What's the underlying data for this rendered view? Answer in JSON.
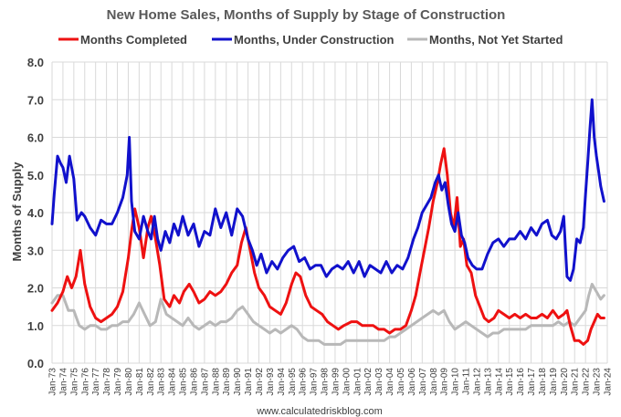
{
  "chart_data": {
    "type": "line",
    "title": "New Home Sales, Months of Supply by Stage of Construction",
    "ylabel": "Months of Supply",
    "xlabel": "",
    "ylim": [
      0,
      8
    ],
    "yticks": [
      "0.0",
      "1.0",
      "2.0",
      "3.0",
      "4.0",
      "5.0",
      "6.0",
      "7.0",
      "8.0"
    ],
    "xticks": [
      "Jan-73",
      "Jan-74",
      "Jan-75",
      "Jan-76",
      "Jan-77",
      "Jan-78",
      "Jan-79",
      "Jan-80",
      "Jan-81",
      "Jan-82",
      "Jan-83",
      "Jan-84",
      "Jan-85",
      "Jan-86",
      "Jan-87",
      "Jan-88",
      "Jan-89",
      "Jan-90",
      "Jan-91",
      "Jan-92",
      "Jan-93",
      "Jan-94",
      "Jan-95",
      "Jan-96",
      "Jan-97",
      "Jan-98",
      "Jan-99",
      "Jan-00",
      "Jan-01",
      "Jan-02",
      "Jan-03",
      "Jan-04",
      "Jan-05",
      "Jan-06",
      "Jan-07",
      "Jan-08",
      "Jan-09",
      "Jan-10",
      "Jan-11",
      "Jan-12",
      "Jan-13",
      "Jan-14",
      "Jan-15",
      "Jan-16",
      "Jan-17",
      "Jan-18",
      "Jan-19",
      "Jan-20",
      "Jan-21",
      "Jan-22",
      "Jan-23",
      "Jan-24"
    ],
    "grid": true,
    "legend_position": "top",
    "source": "www.calculatedriskblog.com",
    "series": [
      {
        "name": "Months Completed",
        "color": "#ee1111",
        "x": [
          1973.0,
          1973.5,
          1974.0,
          1974.4,
          1974.8,
          1975.2,
          1975.6,
          1976.0,
          1976.5,
          1977.0,
          1977.5,
          1978.0,
          1978.5,
          1979.0,
          1979.5,
          1980.0,
          1980.3,
          1980.6,
          1981.0,
          1981.4,
          1981.8,
          1982.1,
          1982.5,
          1982.9,
          1983.3,
          1983.8,
          1984.2,
          1984.7,
          1985.1,
          1985.6,
          1986.0,
          1986.5,
          1987.0,
          1987.5,
          1988.0,
          1988.5,
          1989.0,
          1989.5,
          1990.0,
          1990.4,
          1990.8,
          1991.2,
          1991.6,
          1992.0,
          1992.5,
          1993.0,
          1993.5,
          1994.0,
          1994.5,
          1995.0,
          1995.4,
          1995.8,
          1996.3,
          1996.8,
          1997.3,
          1997.8,
          1998.3,
          1998.8,
          1999.3,
          1999.8,
          2000.5,
          2001.0,
          2001.5,
          2002.0,
          2002.5,
          2003.0,
          2003.5,
          2004.0,
          2004.5,
          2005.0,
          2005.5,
          2006.0,
          2006.4,
          2006.8,
          2007.2,
          2007.6,
          2008.0,
          2008.4,
          2008.7,
          2009.0,
          2009.3,
          2009.6,
          2009.9,
          2010.2,
          2010.5,
          2010.8,
          2011.1,
          2011.5,
          2011.9,
          2012.3,
          2012.7,
          2013.1,
          2013.6,
          2014.0,
          2014.5,
          2015.0,
          2015.5,
          2016.0,
          2016.5,
          2017.0,
          2017.5,
          2018.0,
          2018.5,
          2019.0,
          2019.5,
          2020.0,
          2020.3,
          2020.6,
          2021.0,
          2021.4,
          2021.8,
          2022.2,
          2022.5,
          2022.8,
          2023.1,
          2023.4,
          2023.7
        ],
        "values": [
          1.4,
          1.6,
          1.9,
          2.3,
          2.0,
          2.3,
          3.0,
          2.1,
          1.5,
          1.2,
          1.1,
          1.2,
          1.3,
          1.5,
          1.9,
          2.8,
          3.5,
          4.1,
          3.6,
          2.8,
          3.6,
          3.9,
          3.3,
          2.6,
          1.7,
          1.5,
          1.8,
          1.6,
          1.9,
          2.1,
          1.9,
          1.6,
          1.7,
          1.9,
          1.8,
          1.9,
          2.1,
          2.4,
          2.6,
          3.2,
          3.6,
          3.0,
          2.4,
          2.0,
          1.8,
          1.5,
          1.4,
          1.3,
          1.6,
          2.1,
          2.4,
          2.3,
          1.8,
          1.5,
          1.4,
          1.3,
          1.1,
          1.0,
          0.9,
          1.0,
          1.1,
          1.1,
          1.0,
          1.0,
          1.0,
          0.9,
          0.9,
          0.8,
          0.9,
          0.9,
          1.0,
          1.4,
          1.8,
          2.4,
          3.0,
          3.6,
          4.3,
          4.8,
          5.3,
          5.7,
          5.0,
          4.0,
          3.6,
          4.4,
          3.1,
          3.3,
          2.6,
          2.4,
          1.8,
          1.5,
          1.2,
          1.1,
          1.2,
          1.4,
          1.3,
          1.2,
          1.3,
          1.2,
          1.3,
          1.2,
          1.2,
          1.3,
          1.2,
          1.4,
          1.2,
          1.3,
          1.4,
          1.0,
          0.6,
          0.6,
          0.5,
          0.6,
          0.9,
          1.1,
          1.3,
          1.2,
          1.2
        ]
      },
      {
        "name": "Months, Under Construction",
        "color": "#1111cc",
        "x": [
          1973.0,
          1973.2,
          1973.5,
          1973.8,
          1974.0,
          1974.3,
          1974.6,
          1975.0,
          1975.3,
          1975.7,
          1976.0,
          1976.5,
          1977.0,
          1977.5,
          1978.0,
          1978.5,
          1979.0,
          1979.5,
          1979.9,
          1980.1,
          1980.3,
          1980.6,
          1981.0,
          1981.4,
          1981.8,
          1982.1,
          1982.4,
          1982.7,
          1983.0,
          1983.4,
          1983.8,
          1984.2,
          1984.6,
          1985.0,
          1985.5,
          1986.0,
          1986.5,
          1987.0,
          1987.5,
          1988.0,
          1988.5,
          1989.0,
          1989.5,
          1990.0,
          1990.5,
          1991.0,
          1991.4,
          1991.8,
          1992.2,
          1992.7,
          1993.2,
          1993.7,
          1994.2,
          1994.7,
          1995.2,
          1995.7,
          1996.2,
          1996.7,
          1997.2,
          1997.7,
          1998.2,
          1998.7,
          1999.2,
          1999.7,
          2000.2,
          2000.7,
          2001.2,
          2001.7,
          2002.2,
          2002.7,
          2003.2,
          2003.7,
          2004.2,
          2004.7,
          2005.2,
          2005.7,
          2006.2,
          2006.6,
          2007.0,
          2007.4,
          2007.8,
          2008.2,
          2008.5,
          2008.8,
          2009.1,
          2009.4,
          2009.7,
          2010.0,
          2010.3,
          2010.6,
          2010.9,
          2011.2,
          2011.6,
          2012.0,
          2012.5,
          2013.0,
          2013.5,
          2014.0,
          2014.5,
          2015.0,
          2015.5,
          2016.0,
          2016.5,
          2017.0,
          2017.5,
          2018.0,
          2018.5,
          2018.9,
          2019.3,
          2019.7,
          2020.0,
          2020.3,
          2020.6,
          2020.9,
          2021.2,
          2021.5,
          2021.8,
          2022.0,
          2022.2,
          2022.4,
          2022.6,
          2022.8,
          2023.0,
          2023.2,
          2023.4,
          2023.7
        ],
        "values": [
          3.7,
          4.5,
          5.5,
          5.3,
          5.2,
          4.8,
          5.5,
          4.9,
          3.8,
          4.0,
          3.9,
          3.6,
          3.4,
          3.8,
          3.7,
          3.7,
          4.0,
          4.4,
          5.0,
          6.0,
          4.3,
          3.5,
          3.3,
          3.9,
          3.5,
          3.3,
          3.9,
          3.3,
          3.0,
          3.5,
          3.2,
          3.7,
          3.4,
          3.9,
          3.4,
          3.7,
          3.1,
          3.5,
          3.4,
          4.1,
          3.6,
          4.0,
          3.4,
          4.1,
          3.9,
          3.3,
          3.0,
          2.6,
          2.9,
          2.4,
          2.7,
          2.5,
          2.8,
          3.0,
          3.1,
          2.7,
          2.8,
          2.5,
          2.6,
          2.6,
          2.3,
          2.5,
          2.6,
          2.5,
          2.7,
          2.4,
          2.7,
          2.3,
          2.6,
          2.5,
          2.4,
          2.7,
          2.4,
          2.6,
          2.5,
          2.8,
          3.3,
          3.6,
          4.0,
          4.2,
          4.4,
          4.8,
          5.0,
          4.6,
          4.8,
          4.2,
          3.7,
          3.5,
          4.0,
          3.4,
          3.2,
          2.8,
          2.6,
          2.5,
          2.5,
          2.9,
          3.2,
          3.3,
          3.1,
          3.3,
          3.3,
          3.5,
          3.3,
          3.6,
          3.4,
          3.7,
          3.8,
          3.4,
          3.3,
          3.5,
          3.9,
          2.3,
          2.2,
          2.5,
          3.3,
          3.2,
          3.6,
          4.5,
          5.3,
          6.2,
          7.0,
          6.0,
          5.5,
          5.1,
          4.7,
          4.3
        ]
      },
      {
        "name": "Months, Not Yet Started",
        "color": "#b8b8b8",
        "x": [
          1973.0,
          1973.5,
          1974.0,
          1974.5,
          1975.0,
          1975.5,
          1976.0,
          1976.5,
          1977.0,
          1977.5,
          1978.0,
          1978.5,
          1979.0,
          1979.5,
          1980.0,
          1980.5,
          1981.0,
          1981.5,
          1982.0,
          1982.5,
          1983.0,
          1983.5,
          1984.0,
          1984.5,
          1985.0,
          1985.5,
          1986.0,
          1986.5,
          1987.0,
          1987.5,
          1988.0,
          1988.5,
          1989.0,
          1989.5,
          1990.0,
          1990.5,
          1991.0,
          1991.5,
          1992.0,
          1992.5,
          1993.0,
          1993.5,
          1994.0,
          1994.5,
          1995.0,
          1995.5,
          1996.0,
          1996.5,
          1997.0,
          1997.5,
          1998.0,
          1998.5,
          1999.0,
          1999.5,
          2000.0,
          2000.5,
          2001.0,
          2001.5,
          2002.0,
          2002.5,
          2003.0,
          2003.5,
          2004.0,
          2004.5,
          2005.0,
          2005.5,
          2006.0,
          2006.5,
          2007.0,
          2007.5,
          2008.0,
          2008.5,
          2009.0,
          2009.5,
          2010.0,
          2010.5,
          2011.0,
          2011.5,
          2012.0,
          2012.5,
          2013.0,
          2013.5,
          2014.0,
          2014.5,
          2015.0,
          2015.5,
          2016.0,
          2016.5,
          2017.0,
          2017.5,
          2018.0,
          2018.5,
          2019.0,
          2019.5,
          2020.0,
          2020.5,
          2021.0,
          2021.5,
          2022.0,
          2022.3,
          2022.6,
          2023.0,
          2023.4,
          2023.7
        ],
        "values": [
          1.6,
          1.8,
          1.8,
          1.4,
          1.4,
          1.0,
          0.9,
          1.0,
          1.0,
          0.9,
          0.9,
          1.0,
          1.0,
          1.1,
          1.1,
          1.3,
          1.6,
          1.3,
          1.0,
          1.1,
          1.7,
          1.3,
          1.2,
          1.1,
          1.0,
          1.2,
          1.0,
          0.9,
          1.0,
          1.1,
          1.0,
          1.1,
          1.1,
          1.2,
          1.4,
          1.5,
          1.3,
          1.1,
          1.0,
          0.9,
          0.8,
          0.9,
          0.8,
          0.9,
          1.0,
          0.9,
          0.7,
          0.6,
          0.6,
          0.6,
          0.5,
          0.5,
          0.5,
          0.5,
          0.6,
          0.6,
          0.6,
          0.6,
          0.6,
          0.6,
          0.6,
          0.6,
          0.7,
          0.7,
          0.8,
          0.9,
          1.0,
          1.1,
          1.2,
          1.3,
          1.4,
          1.3,
          1.4,
          1.1,
          0.9,
          1.0,
          1.1,
          1.0,
          0.9,
          0.8,
          0.7,
          0.8,
          0.8,
          0.9,
          0.9,
          0.9,
          0.9,
          0.9,
          1.0,
          1.0,
          1.0,
          1.0,
          1.0,
          1.1,
          1.0,
          1.1,
          1.0,
          1.2,
          1.4,
          1.8,
          2.1,
          1.9,
          1.7,
          1.8
        ]
      }
    ]
  }
}
